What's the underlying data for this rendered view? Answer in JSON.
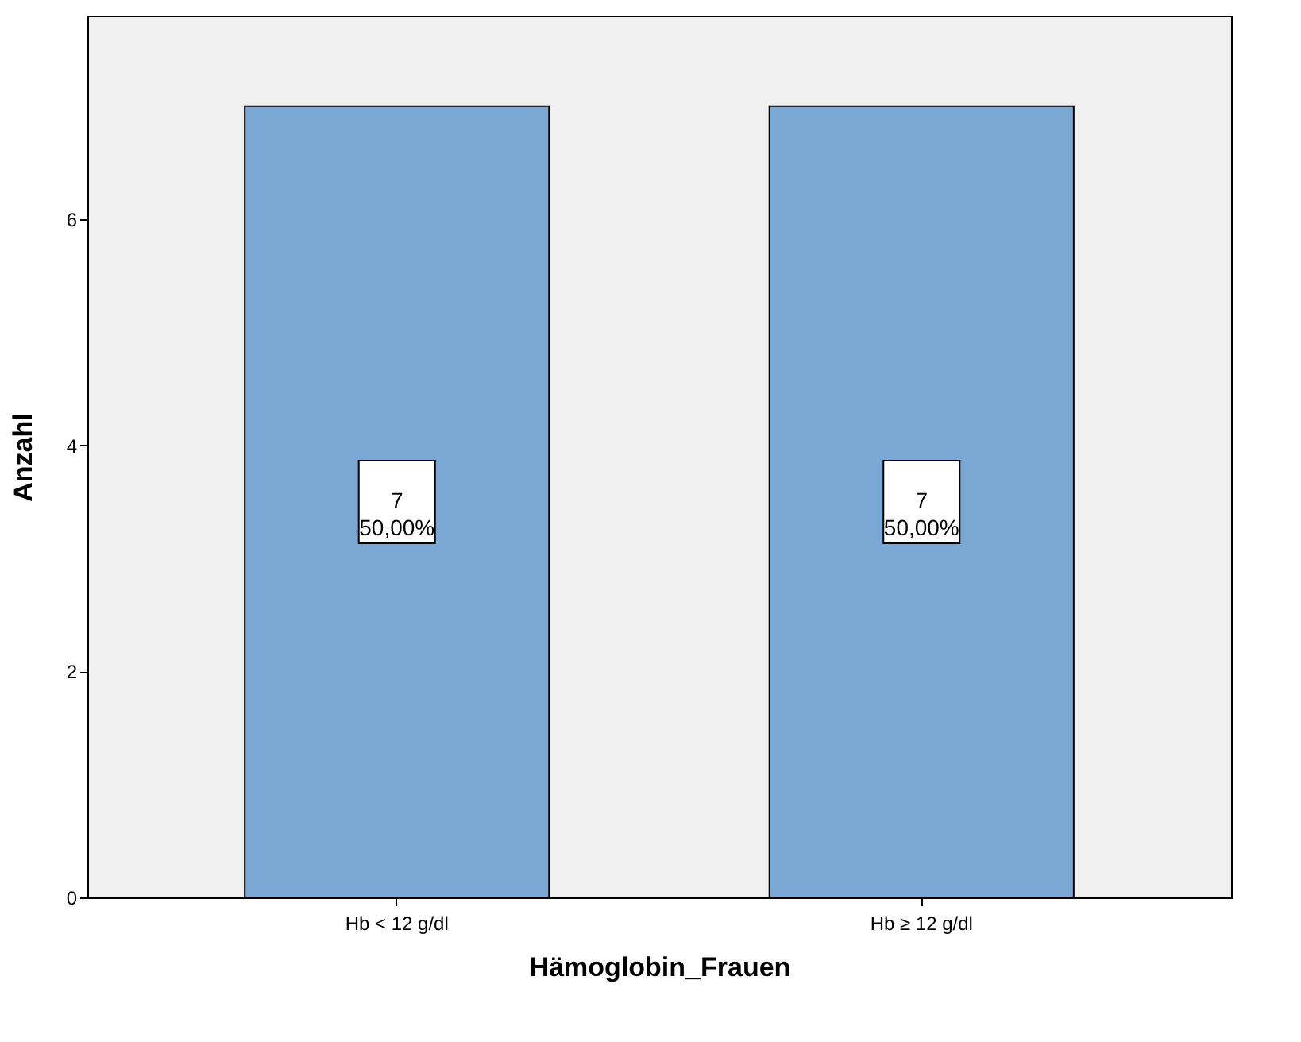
{
  "chart_data": {
    "type": "bar",
    "xlabel": "Hämoglobin_Frauen",
    "ylabel": "Anzahl",
    "categories": [
      "Hb < 12 g/dl",
      "Hb ≥ 12 g/dl"
    ],
    "values": [
      7,
      7
    ],
    "value_labels": [
      "7\n50,00%",
      "7\n50,00%"
    ],
    "color": "#7ba7d5",
    "ylim": [
      0,
      7.8
    ],
    "yticks": [
      0,
      2,
      4,
      6
    ],
    "grid": false
  }
}
